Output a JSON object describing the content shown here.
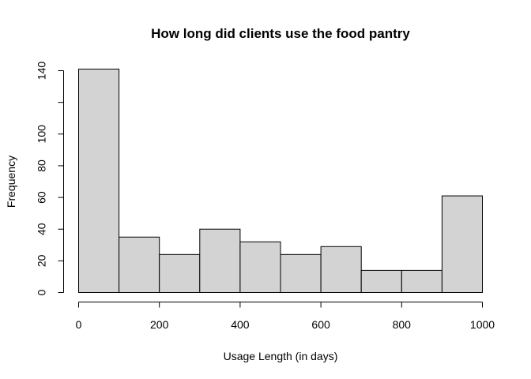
{
  "chart_data": {
    "type": "bar",
    "title": "How long did clients use the food pantry",
    "xlabel": "Usage Length (in days)",
    "ylabel": "Frequency",
    "bins": [
      {
        "from": 0,
        "to": 100,
        "count": 141
      },
      {
        "from": 100,
        "to": 200,
        "count": 35
      },
      {
        "from": 200,
        "to": 300,
        "count": 24
      },
      {
        "from": 300,
        "to": 400,
        "count": 40
      },
      {
        "from": 400,
        "to": 500,
        "count": 32
      },
      {
        "from": 500,
        "to": 600,
        "count": 24
      },
      {
        "from": 600,
        "to": 700,
        "count": 29
      },
      {
        "from": 700,
        "to": 800,
        "count": 14
      },
      {
        "from": 800,
        "to": 900,
        "count": 14
      },
      {
        "from": 900,
        "to": 1000,
        "count": 61
      }
    ],
    "xlim": [
      0,
      1000
    ],
    "ylim": [
      0,
      140
    ],
    "xticks": [
      0,
      200,
      400,
      600,
      800,
      1000
    ],
    "xtick_labels": [
      "0",
      "200",
      "400",
      "600",
      "800",
      "1000"
    ],
    "yticks": [
      0,
      20,
      40,
      60,
      80,
      100,
      120,
      140
    ],
    "ytick_labels": [
      "0",
      "20",
      "40",
      "60",
      "80",
      "100",
      "",
      "140"
    ],
    "grid": false,
    "bar_color": "#d3d3d3",
    "edge_color": "#000000"
  }
}
